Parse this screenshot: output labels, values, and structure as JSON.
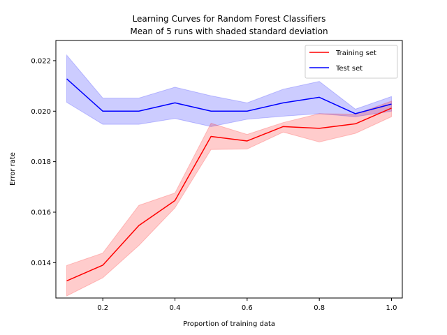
{
  "chart_data": {
    "type": "line",
    "title": "Learning Curves for Random Forest Classifiers",
    "subtitle": "Mean of 5 runs with shaded standard deviation",
    "xlabel": "Proportion of training data",
    "ylabel": "Error rate",
    "xlim": [
      0.07,
      1.03
    ],
    "ylim": [
      0.0126,
      0.0228
    ],
    "xticks": [
      0.2,
      0.4,
      0.6,
      0.8,
      1.0
    ],
    "xtick_labels": [
      "0.2",
      "0.4",
      "0.6",
      "0.8",
      "1.0"
    ],
    "yticks": [
      0.014,
      0.016,
      0.018,
      0.02,
      0.022
    ],
    "ytick_labels": [
      "0.014",
      "0.016",
      "0.018",
      "0.020",
      "0.022"
    ],
    "grid": false,
    "legend_position": "top-right",
    "x": [
      0.1,
      0.2,
      0.3,
      0.4,
      0.5,
      0.6,
      0.7,
      0.8,
      0.9,
      1.0
    ],
    "series": [
      {
        "name": "Training set",
        "color": "#ff0000",
        "band_color": "#ff0000",
        "values": [
          0.01328,
          0.0139,
          0.01547,
          0.01646,
          0.019,
          0.01882,
          0.01939,
          0.01932,
          0.0195,
          0.02012
        ],
        "lower": [
          0.01268,
          0.0134,
          0.01468,
          0.01617,
          0.01848,
          0.0185,
          0.01917,
          0.01878,
          0.01912,
          0.01978
        ],
        "upper": [
          0.01389,
          0.01438,
          0.01627,
          0.01676,
          0.01952,
          0.01908,
          0.01955,
          0.0199,
          0.01988,
          0.0204
        ]
      },
      {
        "name": "Test set",
        "color": "#0000ff",
        "band_color": "#0000ff",
        "values": [
          0.02128,
          0.02,
          0.02,
          0.02033,
          0.02,
          0.02,
          0.02033,
          0.02055,
          0.0199,
          0.02028
        ],
        "lower": [
          0.02035,
          0.01948,
          0.01948,
          0.01971,
          0.01939,
          0.01968,
          0.0198,
          0.0199,
          0.01978,
          0.02
        ],
        "upper": [
          0.02222,
          0.02052,
          0.02052,
          0.02095,
          0.02061,
          0.02033,
          0.02087,
          0.02118,
          0.02008,
          0.02058
        ]
      }
    ]
  }
}
